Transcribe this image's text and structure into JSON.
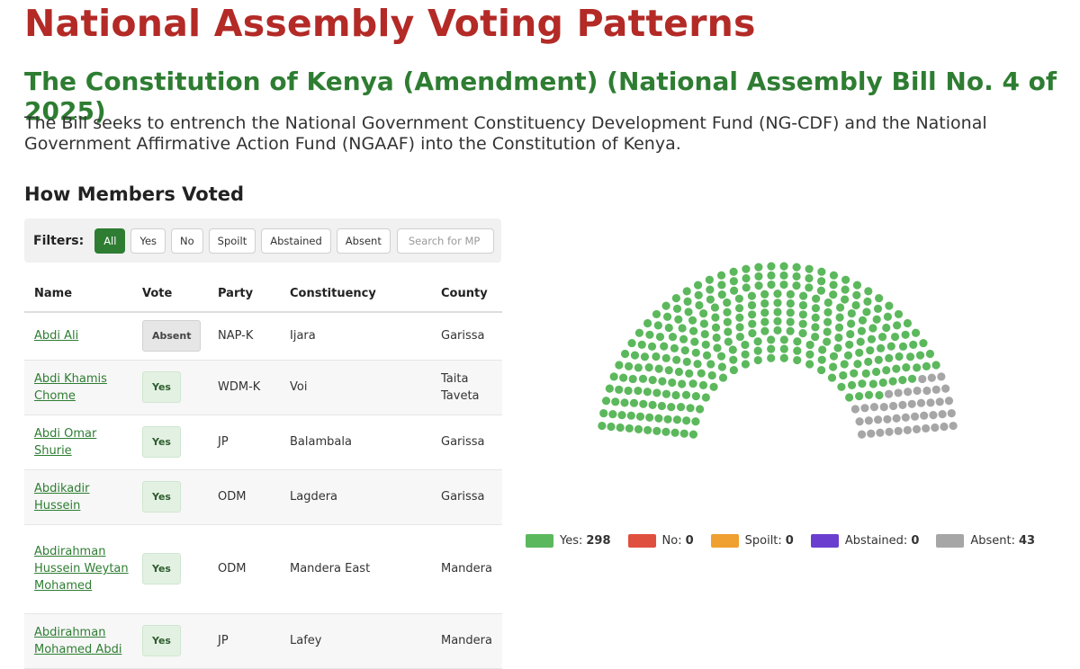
{
  "header": {
    "title": "National Assembly Voting Patterns",
    "bill_title": "The Constitution of Kenya (Amendment) (National Assembly Bill No. 4 of 2025)",
    "bill_description": "The Bill seeks to entrench the National Government Constituency Development Fund (NG-CDF) and the National Government Affirmative Action Fund (NGAAF) into the Constitution of Kenya."
  },
  "section_title": "How Members Voted",
  "filters": {
    "label": "Filters:",
    "buttons": [
      "All",
      "Yes",
      "No",
      "Spoilt",
      "Abstained",
      "Absent"
    ],
    "active": "All",
    "search_placeholder": "Search for MP"
  },
  "table": {
    "columns": [
      "Name",
      "Vote",
      "Party",
      "Constituency",
      "County"
    ],
    "rows": [
      {
        "name": "Abdi Ali",
        "vote": "Absent",
        "party": "NAP-K",
        "constituency": "Ijara",
        "county": "Garissa"
      },
      {
        "name": "Abdi Khamis Chome",
        "vote": "Yes",
        "party": "WDM-K",
        "constituency": "Voi",
        "county": "Taita Taveta"
      },
      {
        "name": "Abdi Omar Shurie",
        "vote": "Yes",
        "party": "JP",
        "constituency": "Balambala",
        "county": "Garissa"
      },
      {
        "name": "Abdikadir Hussein",
        "vote": "Yes",
        "party": "ODM",
        "constituency": "Lagdera",
        "county": "Garissa"
      },
      {
        "name": "Abdirahman Hussein Weytan Mohamed",
        "vote": "Yes",
        "party": "ODM",
        "constituency": "Mandera East",
        "county": "Mandera"
      },
      {
        "name": "Abdirahman Mohamed Abdi",
        "vote": "Yes",
        "party": "JP",
        "constituency": "Lafey",
        "county": "Mandera"
      }
    ]
  },
  "chart_data": {
    "type": "parliament",
    "categories": [
      "Yes",
      "No",
      "Spoilt",
      "Abstained",
      "Absent"
    ],
    "values": [
      298,
      0,
      0,
      0,
      43
    ],
    "colors": [
      "#5cb85c",
      "#e0503e",
      "#f0a030",
      "#6a3fd0",
      "#a6a6a6"
    ]
  },
  "legend": [
    {
      "label": "Yes:",
      "count": "298",
      "color": "#5cb85c"
    },
    {
      "label": "No:",
      "count": "0",
      "color": "#e0503e"
    },
    {
      "label": "Spoilt:",
      "count": "0",
      "color": "#f0a030"
    },
    {
      "label": "Abstained:",
      "count": "0",
      "color": "#6a3fd0"
    },
    {
      "label": "Absent:",
      "count": "43",
      "color": "#a6a6a6"
    }
  ]
}
